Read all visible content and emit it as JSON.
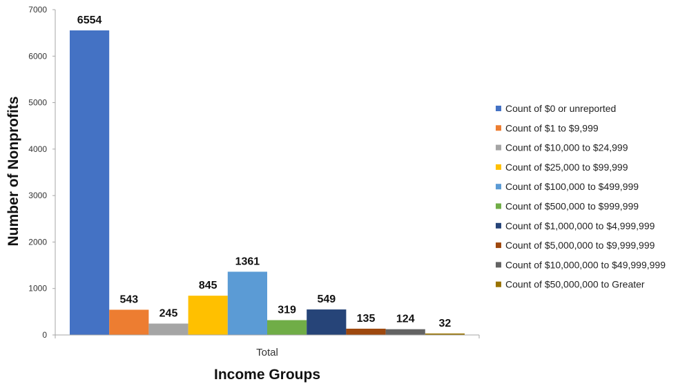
{
  "chart_data": {
    "type": "bar",
    "categories": [
      "Total"
    ],
    "xlabel": "Income Groups",
    "ylabel": "Number of Nonprofits",
    "ylim": [
      0,
      7000
    ],
    "yticks": [
      0,
      1000,
      2000,
      3000,
      4000,
      5000,
      6000,
      7000
    ],
    "grid": false,
    "legend_position": "right",
    "series": [
      {
        "name": "Count of $0 or unreported",
        "values": [
          6554
        ],
        "color": "#4472C4"
      },
      {
        "name": "Count of $1 to $9,999",
        "values": [
          543
        ],
        "color": "#ED7D31"
      },
      {
        "name": "Count of $10,000 to $24,999",
        "values": [
          245
        ],
        "color": "#A5A5A5"
      },
      {
        "name": "Count of $25,000 to $99,999",
        "values": [
          845
        ],
        "color": "#FFC000"
      },
      {
        "name": "Count of $100,000 to $499,999",
        "values": [
          1361
        ],
        "color": "#5B9BD5"
      },
      {
        "name": "Count of $500,000 to $999,999",
        "values": [
          319
        ],
        "color": "#70AD47"
      },
      {
        "name": "Count of $1,000,000 to $4,999,999",
        "values": [
          549
        ],
        "color": "#264478"
      },
      {
        "name": "Count of $5,000,000 to $9,999,999",
        "values": [
          135
        ],
        "color": "#9E480E"
      },
      {
        "name": "Count of $10,000,000 to $49,999,999",
        "values": [
          124
        ],
        "color": "#636363"
      },
      {
        "name": "Count of $50,000,000 to Greater",
        "values": [
          32
        ],
        "color": "#997300"
      }
    ]
  }
}
